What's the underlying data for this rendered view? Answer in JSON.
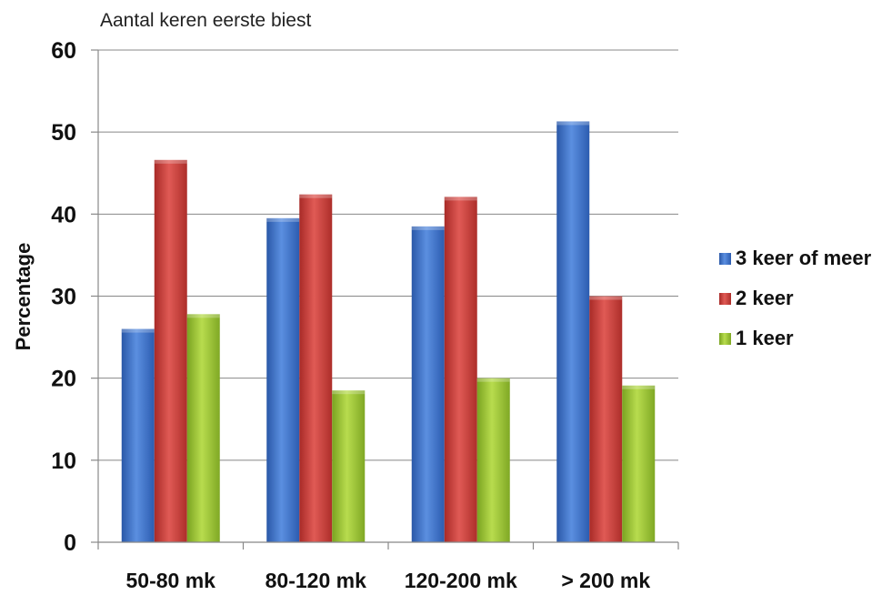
{
  "chart_data": {
    "type": "bar",
    "title": "Aantal keren eerste biest",
    "xlabel": "",
    "ylabel": "Percentage",
    "categories": [
      "50-80 mk",
      "80-120 mk",
      "120-200 mk",
      "> 200 mk"
    ],
    "ylim": [
      0,
      60
    ],
    "yticks": [
      "0",
      "10",
      "20",
      "30",
      "40",
      "50",
      "60"
    ],
    "grid": true,
    "legend_position": "right",
    "series": [
      {
        "name": "3 keer of meer",
        "color": "#3d6fc6",
        "values": [
          26,
          39.5,
          38.5,
          51.3
        ]
      },
      {
        "name": "2 keer",
        "color": "#c93a36",
        "values": [
          46.6,
          42.4,
          42.1,
          30
        ]
      },
      {
        "name": "1 keer",
        "color": "#9bc232",
        "values": [
          27.8,
          18.5,
          20,
          19.1
        ]
      }
    ]
  }
}
